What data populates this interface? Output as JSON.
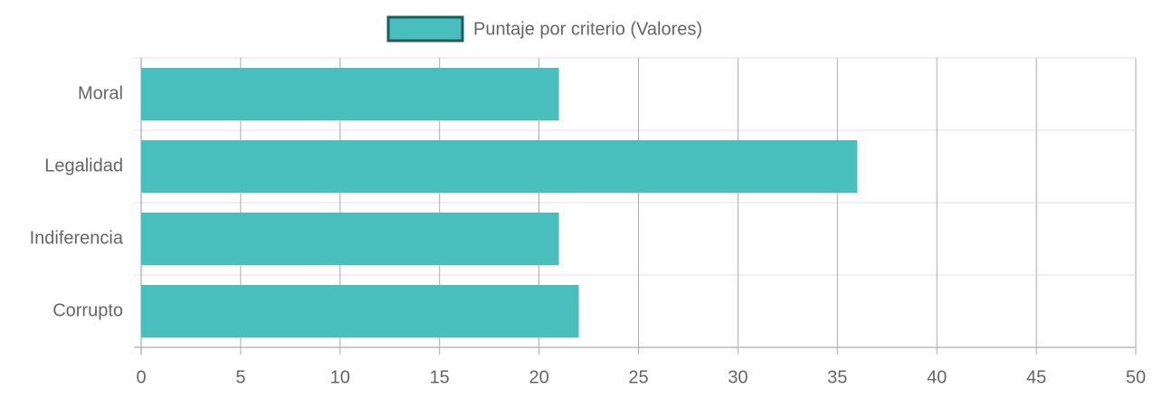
{
  "chart_data": {
    "type": "bar",
    "orientation": "horizontal",
    "categories": [
      "Moral",
      "Legalidad",
      "Indiferencia",
      "Corrupto"
    ],
    "series": [
      {
        "name": "Puntaje por criterio (Valores)",
        "color": "#48bfbd",
        "border_color": "#1d5e5c",
        "values": [
          21,
          36,
          21,
          22
        ]
      }
    ],
    "xlim": [
      0,
      50
    ],
    "xticks": [
      0,
      5,
      10,
      15,
      20,
      25,
      30,
      35,
      40,
      45,
      50
    ],
    "grid": true,
    "legend": "top"
  }
}
